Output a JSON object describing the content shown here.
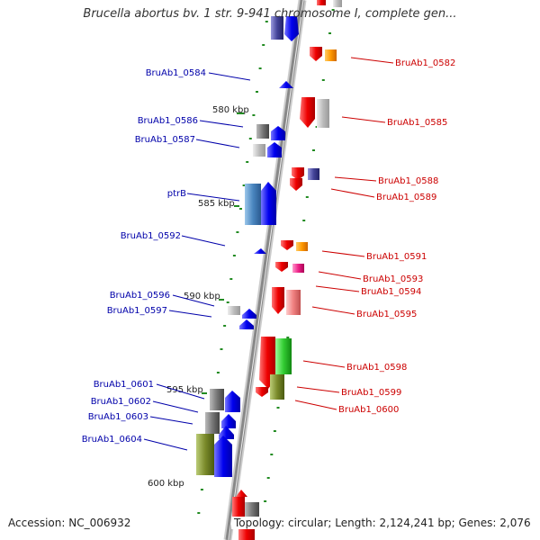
{
  "title": "Brucella abortus bv. 1 str. 9-941 chromosome I, complete gen...",
  "footer": {
    "accession": "Accession: NC_006932",
    "topology": "Topology: circular; Length: 2,124,241 bp; Genes: 2,076"
  },
  "scale_labels": [
    "580 kbp",
    "585 kbp",
    "590 kbp",
    "595 kbp",
    "600 kbp"
  ],
  "labels_left": [
    "BruAb1_0584",
    "BruAb1_0586",
    "BruAb1_0587",
    "ptrB",
    "BruAb1_0592",
    "BruAb1_0596",
    "BruAb1_0597",
    "BruAb1_0601",
    "BruAb1_0602",
    "BruAb1_0603",
    "BruAb1_0604"
  ],
  "labels_right": [
    "BruAb1_0582",
    "BruAb1_0585",
    "BruAb1_0588",
    "BruAb1_0589",
    "BruAb1_0591",
    "BruAb1_0593",
    "BruAb1_0594",
    "BruAb1_0595",
    "BruAb1_0598",
    "BruAb1_0599",
    "BruAb1_0600"
  ],
  "colors": {
    "left_label": "#0000aa",
    "right_label": "#cc0000",
    "tick": "#228b22",
    "backbone": "#8a8a8a"
  }
}
